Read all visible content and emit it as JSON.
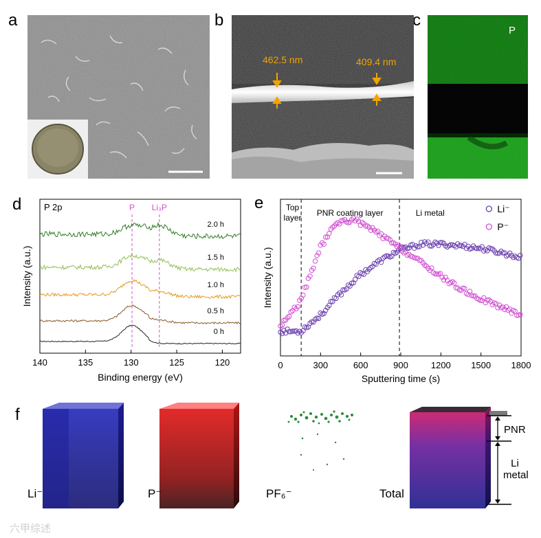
{
  "panel_labels": {
    "a": "a",
    "b": "b",
    "c": "c",
    "d": "d",
    "e": "e",
    "f": "f"
  },
  "panel_b": {
    "thickness_left": "462.5 nm",
    "thickness_right": "409.4 nm"
  },
  "panel_c": {
    "element": "P"
  },
  "colors": {
    "green": "#2f8a2f",
    "magenta": "#d24fd2",
    "purple": "#6a3fae",
    "blue": "#1a1aa8",
    "red": "#c81a1a"
  },
  "chart_d": {
    "type": "line",
    "title": "P 2p",
    "xlabel": "Binding energy (eV)",
    "ylabel": "Intensity (a.u.)",
    "xlim": [
      140,
      118
    ],
    "xticks": [
      "140",
      "135",
      "130",
      "125",
      "120"
    ],
    "peak_labels": {
      "p": "P",
      "li3p": "Li₃P"
    },
    "peak_positions": [
      129.9,
      126.9
    ],
    "series": [
      {
        "name": "0 h",
        "color": "#222222",
        "peak_p": 0.9,
        "peak_li3p": 0.0
      },
      {
        "name": "0.5 h",
        "color": "#8a5a2a",
        "peak_p": 0.85,
        "peak_li3p": 0.15
      },
      {
        "name": "1.0 h",
        "color": "#e39a1e",
        "peak_p": 0.8,
        "peak_li3p": 0.3
      },
      {
        "name": "1.5 h",
        "color": "#8fbf4f",
        "peak_p": 0.65,
        "peak_li3p": 0.5
      },
      {
        "name": "2.0 h",
        "color": "#2e7d22",
        "peak_p": 0.5,
        "peak_li3p": 0.6
      }
    ]
  },
  "chart_e": {
    "type": "scatter",
    "xlabel": "Sputtering time (s)",
    "ylabel": "Intensity (a.u.)",
    "xlim": [
      0,
      1800
    ],
    "xticks": [
      "0",
      "300",
      "600",
      "900",
      "1200",
      "1500",
      "1800"
    ],
    "regions": {
      "top": "Top\nlayer",
      "top_l1": "Top",
      "top_l2": "layer",
      "pnr": "PNR coating layer",
      "li": "Li metal"
    },
    "boundaries": [
      155,
      890
    ],
    "legend": {
      "li": "Li⁻",
      "p": "P⁻"
    },
    "series": [
      {
        "name": "Li⁻",
        "color": "#6a3fae",
        "points": [
          [
            0,
            0.08
          ],
          [
            150,
            0.08
          ],
          [
            300,
            0.2
          ],
          [
            450,
            0.36
          ],
          [
            600,
            0.5
          ],
          [
            750,
            0.6
          ],
          [
            900,
            0.68
          ],
          [
            1050,
            0.72
          ],
          [
            1200,
            0.72
          ],
          [
            1350,
            0.71
          ],
          [
            1500,
            0.69
          ],
          [
            1650,
            0.66
          ],
          [
            1800,
            0.62
          ]
        ]
      },
      {
        "name": "P⁻",
        "color": "#d24fd2",
        "points": [
          [
            0,
            0.12
          ],
          [
            150,
            0.3
          ],
          [
            300,
            0.7
          ],
          [
            420,
            0.88
          ],
          [
            550,
            0.9
          ],
          [
            700,
            0.82
          ],
          [
            850,
            0.72
          ],
          [
            1000,
            0.62
          ],
          [
            1150,
            0.52
          ],
          [
            1300,
            0.42
          ],
          [
            1450,
            0.34
          ],
          [
            1600,
            0.28
          ],
          [
            1800,
            0.2
          ]
        ]
      }
    ]
  },
  "panel_f": {
    "li": "Li⁻",
    "p": "P⁻",
    "pf6": "PF₆⁻",
    "total": "Total",
    "pnr": "PNR",
    "li_metal_1": "Li",
    "li_metal_2": "metal"
  },
  "watermark": "六甲综述"
}
